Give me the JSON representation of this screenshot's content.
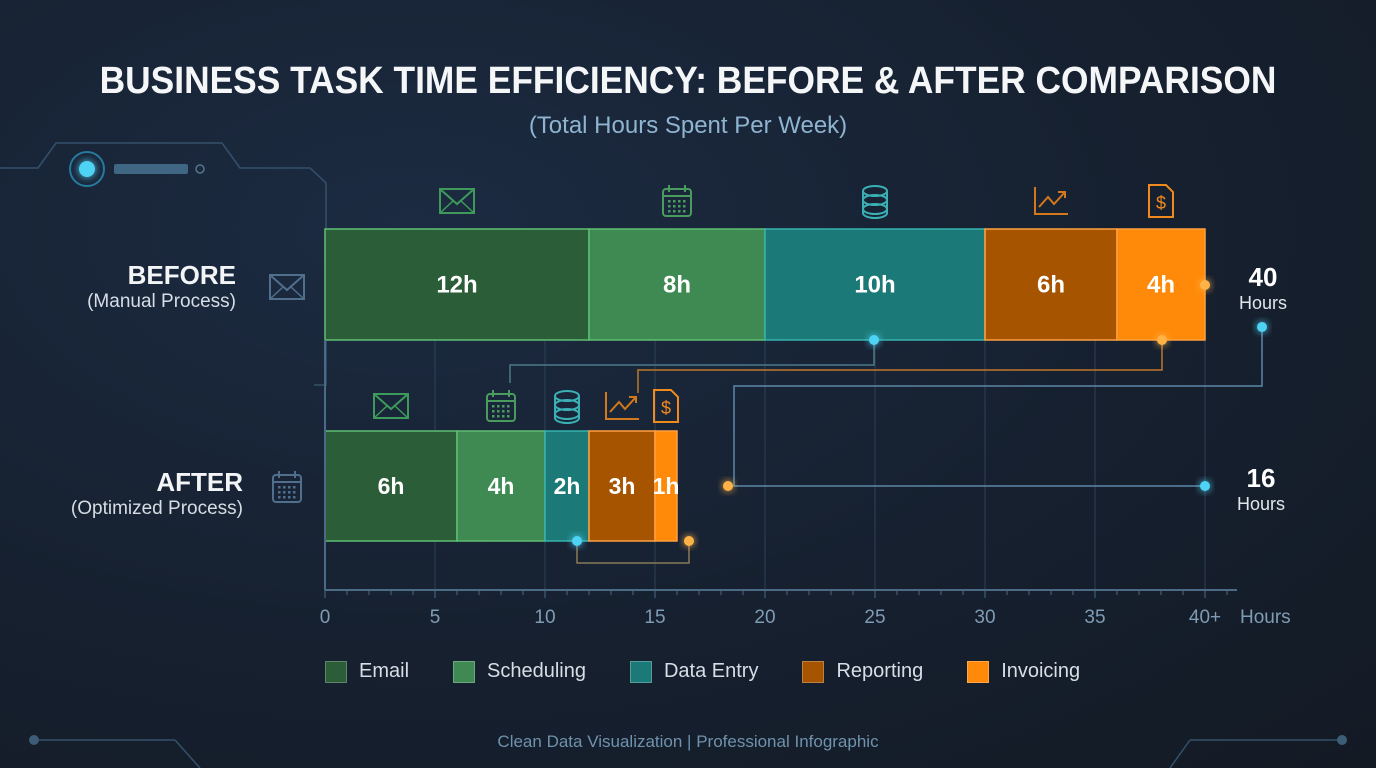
{
  "header": {
    "title": "BUSINESS TASK TIME EFFICIENCY: BEFORE & AFTER COMPARISON",
    "subtitle": "(Total Hours Spent Per Week)"
  },
  "chart_data": {
    "type": "bar",
    "stacked": true,
    "orientation": "horizontal",
    "categories": [
      "BEFORE",
      "AFTER"
    ],
    "category_sublabels": [
      "(Manual Process)",
      "(Optimized Process)"
    ],
    "series": [
      {
        "name": "Email",
        "values": [
          12,
          6
        ],
        "labels": [
          "12h",
          "6h"
        ],
        "color": "#2b5e38",
        "icon": "envelope-icon"
      },
      {
        "name": "Scheduling",
        "values": [
          8,
          4
        ],
        "labels": [
          "8h",
          "4h"
        ],
        "color": "#3f8a52",
        "icon": "calendar-icon"
      },
      {
        "name": "Data Entry",
        "values": [
          10,
          2
        ],
        "labels": [
          "10h",
          "2h"
        ],
        "color": "#1b7a78",
        "icon": "database-icon"
      },
      {
        "name": "Reporting",
        "values": [
          6,
          3
        ],
        "labels": [
          "6h",
          "3h"
        ],
        "color": "#a65400",
        "icon": "trend-chart-icon"
      },
      {
        "name": "Invoicing",
        "values": [
          4,
          1
        ],
        "labels": [
          "4h",
          "1h"
        ],
        "color": "#ff8a0a",
        "icon": "invoice-dollar-icon"
      }
    ],
    "totals": [
      {
        "value": "40",
        "unit": "Hours"
      },
      {
        "value": "16",
        "unit": "Hours"
      }
    ],
    "xlim": [
      0,
      40
    ],
    "xticks": [
      "0",
      "5",
      "10",
      "15",
      "20",
      "25",
      "30",
      "35",
      "40+"
    ],
    "xlabel": "Hours",
    "grid": true,
    "legend": "bottom"
  },
  "footer": "Clean Data Visualization | Professional Infographic"
}
